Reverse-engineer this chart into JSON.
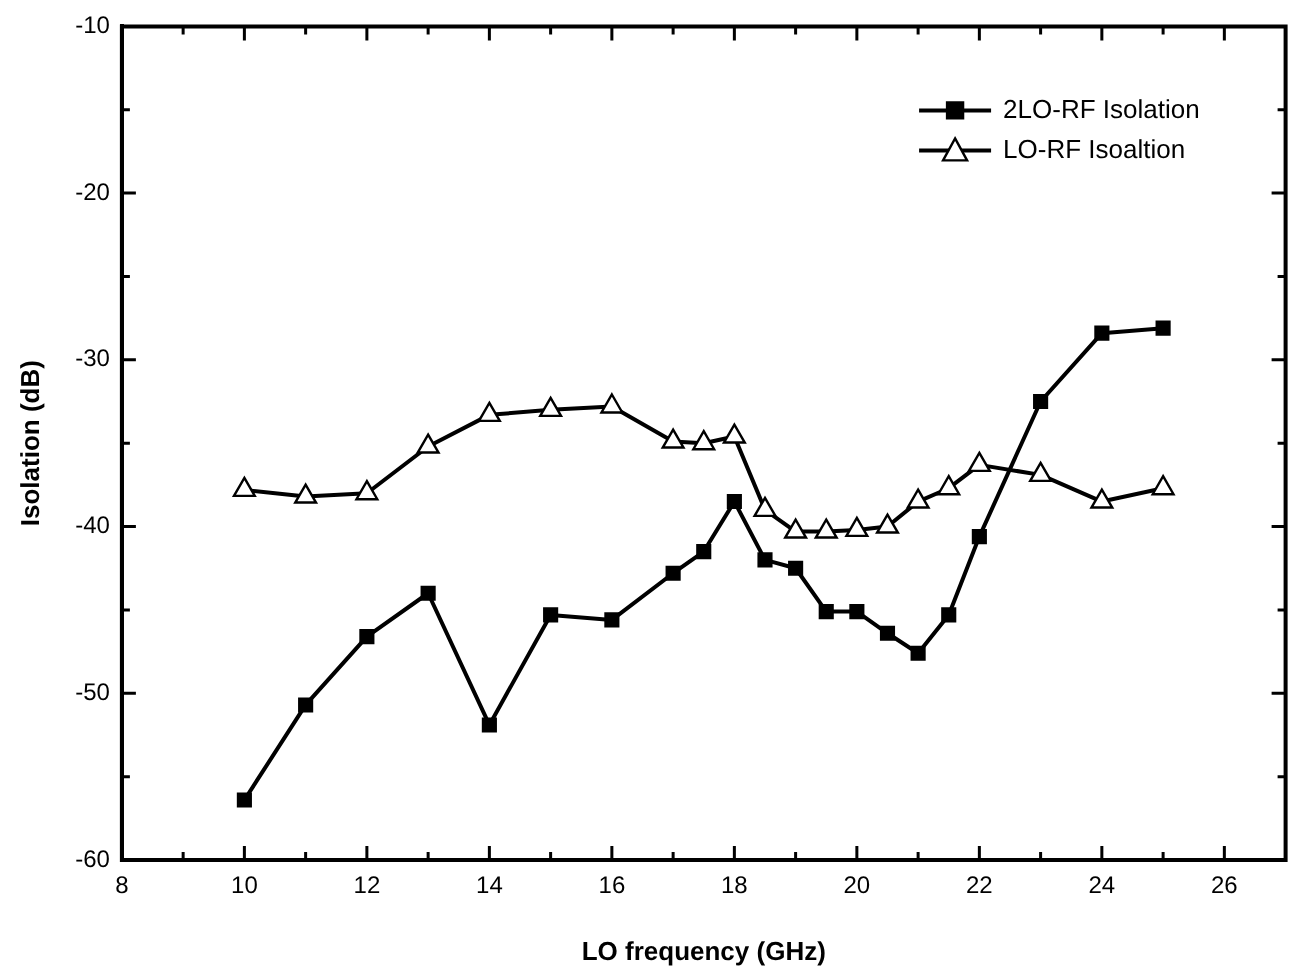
{
  "chart_data": {
    "type": "line",
    "xlabel": "LO frequency (GHz)",
    "ylabel": "Isolation (dB)",
    "x": [
      10,
      11,
      12,
      13,
      14,
      15,
      16,
      17,
      17.5,
      18,
      18.5,
      19,
      19.5,
      20,
      20.5,
      21,
      21.5,
      22,
      23,
      24,
      25
    ],
    "series": [
      {
        "name": "2LO-RF Isolation",
        "color": "#000000",
        "marker": "square",
        "values": [
          -56.4,
          -50.7,
          -46.6,
          -44.0,
          -51.9,
          -45.3,
          -45.6,
          -42.8,
          -41.5,
          -38.5,
          -42.0,
          -42.5,
          -45.1,
          -45.1,
          -46.4,
          -47.6,
          -45.3,
          -40.6,
          -32.5,
          -28.4,
          -28.1
        ]
      },
      {
        "name": "LO-RF Isoaltion",
        "color": "#000000",
        "marker": "triangle",
        "values": [
          -37.8,
          -38.2,
          -38.0,
          -35.2,
          -33.3,
          -33.0,
          -32.8,
          -34.9,
          -35.0,
          -34.6,
          -39.0,
          -40.3,
          -40.3,
          -40.2,
          -40.0,
          -38.5,
          -37.7,
          -36.3,
          -36.9,
          -38.5,
          -37.7
        ]
      }
    ],
    "xlim": [
      8,
      27
    ],
    "xticks": [
      8,
      10,
      12,
      14,
      16,
      18,
      20,
      22,
      24,
      26
    ],
    "ylim": [
      -60,
      -10
    ],
    "yticks": [
      -60,
      -50,
      -40,
      -30,
      -20,
      -10
    ],
    "grid": false,
    "legend": "top right",
    "line_style": "solid"
  }
}
